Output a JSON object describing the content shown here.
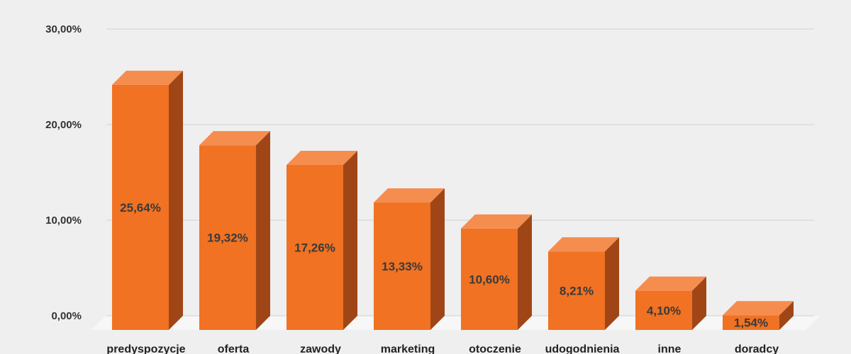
{
  "chart_data": {
    "type": "bar",
    "categories": [
      "predyspozycje",
      "oferta",
      "zawody",
      "marketing",
      "otoczenie",
      "udogodnienia",
      "inne",
      "doradcy"
    ],
    "values": [
      25.64,
      19.32,
      17.26,
      13.33,
      10.6,
      8.21,
      4.1,
      1.54
    ],
    "value_labels": [
      "25,64%",
      "19,32%",
      "17,26%",
      "13,33%",
      "10,60%",
      "8,21%",
      "4,10%",
      "1,54%"
    ],
    "title": "",
    "xlabel": "",
    "ylabel": "",
    "ylim": [
      0,
      30
    ],
    "y_ticks": [
      0,
      10,
      20,
      30
    ],
    "y_tick_labels": [
      "0,00%",
      "10,00%",
      "20,00%",
      "30,00%"
    ],
    "grid": true,
    "legend": "none",
    "style": "3d"
  },
  "colors": {
    "background": "#efefef",
    "bar_front": "#f07222",
    "bar_top": "#f58d4f",
    "bar_side": "#a04616",
    "grid": "#d2d2d2",
    "floor": "#f7f7f7"
  }
}
